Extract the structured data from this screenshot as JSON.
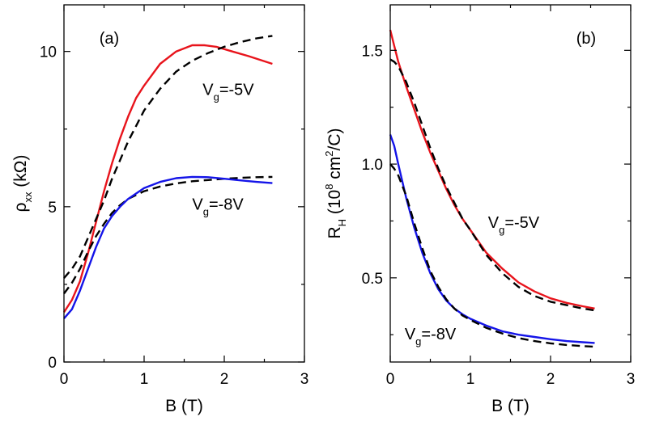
{
  "chart_data": [
    {
      "type": "line",
      "panel_label": "(a)",
      "xlabel": "B (T)",
      "ylabel": {
        "base": "ρ",
        "sub": "xx",
        "rest": " (kΩ)"
      },
      "xlim": [
        0,
        3
      ],
      "ylim": [
        0,
        11.5
      ],
      "xticks": [
        0,
        1,
        2,
        3
      ],
      "yticks": [
        0,
        5,
        10
      ],
      "grid": false,
      "annotations": [
        {
          "base": "V",
          "sub": "g",
          "rest": "=-5V",
          "x": 1.73,
          "y": 8.6
        },
        {
          "base": "V",
          "sub": "g",
          "rest": "=-8V",
          "x": 1.6,
          "y": 4.9
        }
      ],
      "series": [
        {
          "style": "solid",
          "color": "#e8141c",
          "x": [
            0,
            0.1,
            0.2,
            0.3,
            0.4,
            0.5,
            0.6,
            0.7,
            0.8,
            0.9,
            1.0,
            1.2,
            1.4,
            1.6,
            1.75,
            1.9,
            2.1,
            2.3,
            2.6
          ],
          "y": [
            1.6,
            2.0,
            2.6,
            3.5,
            4.5,
            5.5,
            6.4,
            7.2,
            7.9,
            8.5,
            8.9,
            9.6,
            10.0,
            10.2,
            10.2,
            10.15,
            10.0,
            9.85,
            9.6
          ]
        },
        {
          "style": "dashed",
          "color": "#000000",
          "x": [
            0,
            0.1,
            0.2,
            0.3,
            0.4,
            0.5,
            0.6,
            0.7,
            0.8,
            0.9,
            1.0,
            1.2,
            1.4,
            1.6,
            1.8,
            2.0,
            2.2,
            2.4,
            2.6
          ],
          "y": [
            2.7,
            3.0,
            3.4,
            4.0,
            4.6,
            5.2,
            5.9,
            6.5,
            7.1,
            7.6,
            8.1,
            8.8,
            9.35,
            9.7,
            9.95,
            10.15,
            10.3,
            10.42,
            10.5
          ]
        },
        {
          "style": "dashed",
          "color": "#000000",
          "x": [
            0,
            0.1,
            0.2,
            0.3,
            0.4,
            0.5,
            0.6,
            0.7,
            0.8,
            1.0,
            1.2,
            1.4,
            1.6,
            1.8,
            2.0,
            2.2,
            2.4,
            2.6
          ],
          "y": [
            2.2,
            2.55,
            3.0,
            3.55,
            4.05,
            4.45,
            4.8,
            5.05,
            5.25,
            5.5,
            5.65,
            5.75,
            5.82,
            5.86,
            5.9,
            5.93,
            5.95,
            5.96
          ]
        },
        {
          "style": "solid",
          "color": "#1414e8",
          "x": [
            0,
            0.1,
            0.2,
            0.3,
            0.4,
            0.5,
            0.6,
            0.7,
            0.8,
            1.0,
            1.2,
            1.4,
            1.6,
            1.8,
            2.0,
            2.2,
            2.4,
            2.6
          ],
          "y": [
            1.4,
            1.7,
            2.3,
            3.0,
            3.7,
            4.3,
            4.7,
            5.0,
            5.25,
            5.6,
            5.8,
            5.92,
            5.96,
            5.95,
            5.9,
            5.85,
            5.8,
            5.76
          ]
        }
      ]
    },
    {
      "type": "line",
      "panel_label": "(b)",
      "xlabel": "B (T)",
      "ylabel": {
        "base": "R",
        "sub": "H",
        "mid": " (10",
        "sup": "8",
        "mid2": " cm",
        "sup2": "2",
        "rest": "/C)"
      },
      "xlim": [
        0,
        3
      ],
      "ylim": [
        0.13,
        1.7
      ],
      "xticks": [
        0,
        1,
        2,
        3
      ],
      "yticks": [
        0.5,
        1.0,
        1.5
      ],
      "yticklabels": [
        "0.5",
        "1.0",
        "1.5"
      ],
      "grid": false,
      "annotations": [
        {
          "base": "V",
          "sub": "g",
          "rest": "=-5V",
          "x": 1.22,
          "y": 0.72
        },
        {
          "base": "V",
          "sub": "g",
          "rest": "=-8V",
          "x": 0.18,
          "y": 0.23
        }
      ],
      "series": [
        {
          "style": "solid",
          "color": "#e8141c",
          "x": [
            0,
            0.05,
            0.1,
            0.2,
            0.3,
            0.4,
            0.5,
            0.6,
            0.7,
            0.8,
            0.9,
            1.0,
            1.2,
            1.4,
            1.6,
            1.8,
            2.0,
            2.2,
            2.4,
            2.55
          ],
          "y": [
            1.59,
            1.52,
            1.45,
            1.34,
            1.24,
            1.14,
            1.05,
            0.97,
            0.89,
            0.82,
            0.76,
            0.71,
            0.61,
            0.54,
            0.48,
            0.44,
            0.41,
            0.39,
            0.375,
            0.365
          ]
        },
        {
          "style": "dashed",
          "color": "#000000",
          "x": [
            0,
            0.05,
            0.1,
            0.2,
            0.3,
            0.4,
            0.5,
            0.6,
            0.7,
            0.8,
            0.9,
            1.0,
            1.2,
            1.4,
            1.6,
            1.8,
            2.0,
            2.2,
            2.4,
            2.55
          ],
          "y": [
            1.46,
            1.45,
            1.43,
            1.36,
            1.27,
            1.17,
            1.07,
            0.98,
            0.9,
            0.83,
            0.76,
            0.71,
            0.6,
            0.52,
            0.46,
            0.42,
            0.395,
            0.38,
            0.365,
            0.357
          ]
        },
        {
          "style": "solid",
          "color": "#1414e8",
          "x": [
            0,
            0.05,
            0.1,
            0.2,
            0.3,
            0.4,
            0.5,
            0.6,
            0.7,
            0.8,
            0.9,
            1.0,
            1.2,
            1.4,
            1.6,
            1.8,
            2.0,
            2.2,
            2.4,
            2.55
          ],
          "y": [
            1.13,
            1.08,
            1.0,
            0.85,
            0.72,
            0.61,
            0.52,
            0.45,
            0.4,
            0.365,
            0.34,
            0.32,
            0.29,
            0.265,
            0.25,
            0.24,
            0.23,
            0.222,
            0.217,
            0.214
          ]
        },
        {
          "style": "dashed",
          "color": "#000000",
          "x": [
            0,
            0.05,
            0.1,
            0.2,
            0.3,
            0.4,
            0.5,
            0.6,
            0.7,
            0.8,
            0.9,
            1.0,
            1.2,
            1.4,
            1.6,
            1.8,
            2.0,
            2.2,
            2.4,
            2.55
          ],
          "y": [
            1.0,
            0.98,
            0.95,
            0.86,
            0.74,
            0.63,
            0.53,
            0.46,
            0.405,
            0.365,
            0.335,
            0.315,
            0.28,
            0.255,
            0.235,
            0.222,
            0.212,
            0.205,
            0.2,
            0.197
          ]
        }
      ]
    }
  ]
}
